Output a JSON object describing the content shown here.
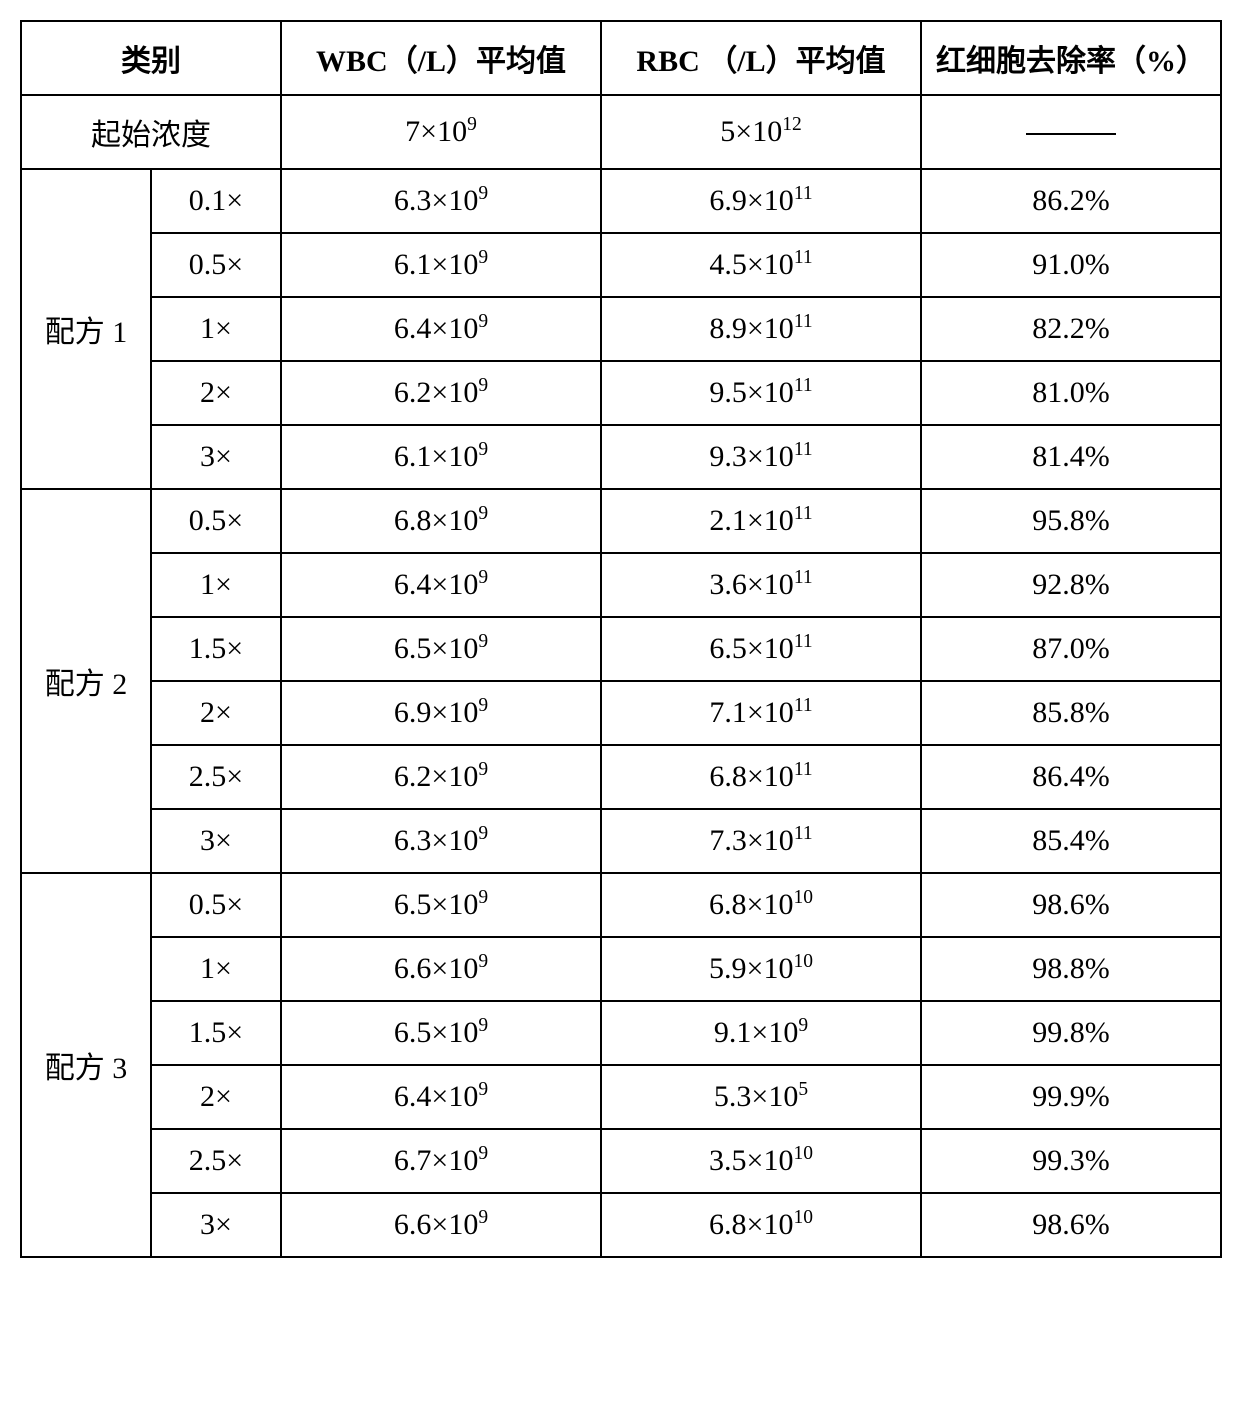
{
  "header": {
    "category": "类别",
    "wbc": "WBC（/L）平均值",
    "rbc": "RBC （/L）平均值",
    "removal": "红细胞去除率（%）"
  },
  "initial": {
    "label": "起始浓度",
    "wbc_base": "7×10",
    "wbc_exp": "9",
    "rbc_base": "5×10",
    "rbc_exp": "12"
  },
  "groups": [
    {
      "name": "配方 1",
      "rows": [
        {
          "conc": "0.1×",
          "wbc_base": "6.3×10",
          "wbc_exp": "9",
          "rbc_base": "6.9×10",
          "rbc_exp": "11",
          "rate": "86.2%"
        },
        {
          "conc": "0.5×",
          "wbc_base": "6.1×10",
          "wbc_exp": "9",
          "rbc_base": "4.5×10",
          "rbc_exp": "11",
          "rate": "91.0%"
        },
        {
          "conc": "1×",
          "wbc_base": "6.4×10",
          "wbc_exp": "9",
          "rbc_base": "8.9×10",
          "rbc_exp": "11",
          "rate": "82.2%"
        },
        {
          "conc": "2×",
          "wbc_base": "6.2×10",
          "wbc_exp": "9",
          "rbc_base": "9.5×10",
          "rbc_exp": "11",
          "rate": "81.0%"
        },
        {
          "conc": "3×",
          "wbc_base": "6.1×10",
          "wbc_exp": "9",
          "rbc_base": "9.3×10",
          "rbc_exp": "11",
          "rate": "81.4%"
        }
      ]
    },
    {
      "name": "配方 2",
      "rows": [
        {
          "conc": "0.5×",
          "wbc_base": "6.8×10",
          "wbc_exp": "9",
          "rbc_base": "2.1×10",
          "rbc_exp": "11",
          "rate": "95.8%"
        },
        {
          "conc": "1×",
          "wbc_base": "6.4×10",
          "wbc_exp": "9",
          "rbc_base": "3.6×10",
          "rbc_exp": "11",
          "rate": "92.8%"
        },
        {
          "conc": "1.5×",
          "wbc_base": "6.5×10",
          "wbc_exp": "9",
          "rbc_base": "6.5×10",
          "rbc_exp": "11",
          "rate": "87.0%"
        },
        {
          "conc": "2×",
          "wbc_base": "6.9×10",
          "wbc_exp": "9",
          "rbc_base": "7.1×10",
          "rbc_exp": "11",
          "rate": "85.8%"
        },
        {
          "conc": "2.5×",
          "wbc_base": "6.2×10",
          "wbc_exp": "9",
          "rbc_base": "6.8×10",
          "rbc_exp": "11",
          "rate": "86.4%"
        },
        {
          "conc": "3×",
          "wbc_base": "6.3×10",
          "wbc_exp": "9",
          "rbc_base": "7.3×10",
          "rbc_exp": "11",
          "rate": "85.4%"
        }
      ]
    },
    {
      "name": "配方 3",
      "rows": [
        {
          "conc": "0.5×",
          "wbc_base": "6.5×10",
          "wbc_exp": "9",
          "rbc_base": "6.8×10",
          "rbc_exp": "10",
          "rate": "98.6%"
        },
        {
          "conc": "1×",
          "wbc_base": "6.6×10",
          "wbc_exp": "9",
          "rbc_base": "5.9×10",
          "rbc_exp": "10",
          "rate": "98.8%"
        },
        {
          "conc": "1.5×",
          "wbc_base": "6.5×10",
          "wbc_exp": "9",
          "rbc_base": "9.1×10",
          "rbc_exp": "9",
          "rate": "99.8%"
        },
        {
          "conc": "2×",
          "wbc_base": "6.4×10",
          "wbc_exp": "9",
          "rbc_base": "5.3×10",
          "rbc_exp": "5",
          "rate": "99.9%"
        },
        {
          "conc": "2.5×",
          "wbc_base": "6.7×10",
          "wbc_exp": "9",
          "rbc_base": "3.5×10",
          "rbc_exp": "10",
          "rate": "99.3%"
        },
        {
          "conc": "3×",
          "wbc_base": "6.6×10",
          "wbc_exp": "9",
          "rbc_base": "6.8×10",
          "rbc_exp": "10",
          "rate": "98.6%"
        }
      ]
    }
  ],
  "style": {
    "border_color": "#000000",
    "background_color": "#ffffff",
    "font_size_pt": 22,
    "header_font_weight": "bold"
  }
}
